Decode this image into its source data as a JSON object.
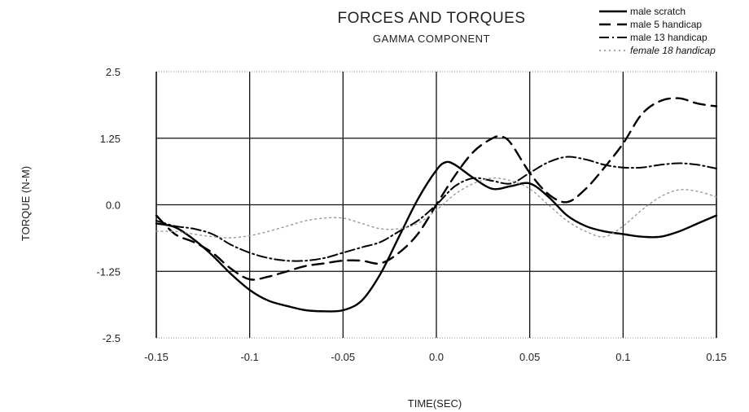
{
  "chart_data": {
    "type": "line",
    "title": "FORCES AND TORQUES",
    "subtitle": "GAMMA COMPONENT",
    "xlabel": "TIME(SEC)",
    "ylabel": "TORQUE (N-M)",
    "xlim": [
      -0.15,
      0.15
    ],
    "ylim": [
      -2.5,
      2.5
    ],
    "x_ticks": [
      "-0.15",
      "-0.1",
      "-0.05",
      "0.0",
      "0.05",
      "0.1",
      "0.15"
    ],
    "y_ticks": [
      "2.5",
      "1.25",
      "0.0",
      "-1.25",
      "-2.5"
    ],
    "grid": true,
    "legend_position": "top-right",
    "series": [
      {
        "name": "male scratch",
        "style": "solid",
        "x": [
          -0.15,
          -0.14,
          -0.13,
          -0.12,
          -0.11,
          -0.1,
          -0.09,
          -0.08,
          -0.07,
          -0.06,
          -0.05,
          -0.04,
          -0.03,
          -0.02,
          -0.01,
          0.0,
          0.005,
          0.01,
          0.02,
          0.03,
          0.04,
          0.05,
          0.06,
          0.07,
          0.08,
          0.09,
          0.1,
          0.11,
          0.12,
          0.13,
          0.14,
          0.15
        ],
        "y": [
          -0.35,
          -0.42,
          -0.65,
          -0.95,
          -1.3,
          -1.6,
          -1.8,
          -1.9,
          -1.98,
          -2.0,
          -1.98,
          -1.8,
          -1.3,
          -0.6,
          0.1,
          0.65,
          0.8,
          0.75,
          0.5,
          0.3,
          0.35,
          0.4,
          0.15,
          -0.2,
          -0.4,
          -0.5,
          -0.55,
          -0.6,
          -0.6,
          -0.5,
          -0.35,
          -0.2
        ]
      },
      {
        "name": "male 5 handicap",
        "style": "dashed",
        "x": [
          -0.15,
          -0.14,
          -0.13,
          -0.12,
          -0.11,
          -0.1,
          -0.09,
          -0.08,
          -0.07,
          -0.06,
          -0.05,
          -0.04,
          -0.03,
          -0.02,
          -0.01,
          0.0,
          0.01,
          0.02,
          0.03,
          0.035,
          0.04,
          0.05,
          0.06,
          0.07,
          0.08,
          0.09,
          0.1,
          0.11,
          0.12,
          0.13,
          0.14,
          0.15
        ],
        "y": [
          -0.2,
          -0.55,
          -0.7,
          -0.9,
          -1.2,
          -1.4,
          -1.35,
          -1.25,
          -1.15,
          -1.1,
          -1.05,
          -1.05,
          -1.1,
          -0.9,
          -0.55,
          0.0,
          0.55,
          1.0,
          1.25,
          1.28,
          1.15,
          0.6,
          0.2,
          0.05,
          0.3,
          0.7,
          1.15,
          1.7,
          1.95,
          2.0,
          1.9,
          1.85
        ]
      },
      {
        "name": "male 13 handicap",
        "style": "dashdot",
        "x": [
          -0.15,
          -0.14,
          -0.13,
          -0.12,
          -0.11,
          -0.1,
          -0.09,
          -0.08,
          -0.07,
          -0.06,
          -0.05,
          -0.04,
          -0.03,
          -0.02,
          -0.01,
          0.0,
          0.01,
          0.02,
          0.03,
          0.04,
          0.05,
          0.06,
          0.07,
          0.08,
          0.09,
          0.1,
          0.11,
          0.12,
          0.13,
          0.14,
          0.15
        ],
        "y": [
          -0.3,
          -0.4,
          -0.45,
          -0.55,
          -0.75,
          -0.9,
          -1.0,
          -1.05,
          -1.05,
          -1.0,
          -0.9,
          -0.8,
          -0.7,
          -0.5,
          -0.3,
          0.0,
          0.35,
          0.5,
          0.45,
          0.4,
          0.6,
          0.8,
          0.9,
          0.85,
          0.75,
          0.7,
          0.7,
          0.75,
          0.78,
          0.75,
          0.68
        ]
      },
      {
        "name": "female 18 handicap",
        "style": "dotted",
        "x": [
          -0.15,
          -0.14,
          -0.13,
          -0.12,
          -0.11,
          -0.1,
          -0.09,
          -0.08,
          -0.07,
          -0.06,
          -0.05,
          -0.04,
          -0.03,
          -0.02,
          -0.01,
          0.0,
          0.01,
          0.02,
          0.03,
          0.04,
          0.05,
          0.06,
          0.07,
          0.08,
          0.09,
          0.1,
          0.11,
          0.12,
          0.13,
          0.14,
          0.15
        ],
        "y": [
          -0.5,
          -0.5,
          -0.55,
          -0.6,
          -0.62,
          -0.58,
          -0.5,
          -0.4,
          -0.3,
          -0.25,
          -0.25,
          -0.35,
          -0.45,
          -0.45,
          -0.35,
          -0.1,
          0.2,
          0.4,
          0.5,
          0.45,
          0.3,
          0.0,
          -0.3,
          -0.5,
          -0.6,
          -0.4,
          -0.1,
          0.15,
          0.28,
          0.25,
          0.15
        ]
      }
    ]
  }
}
